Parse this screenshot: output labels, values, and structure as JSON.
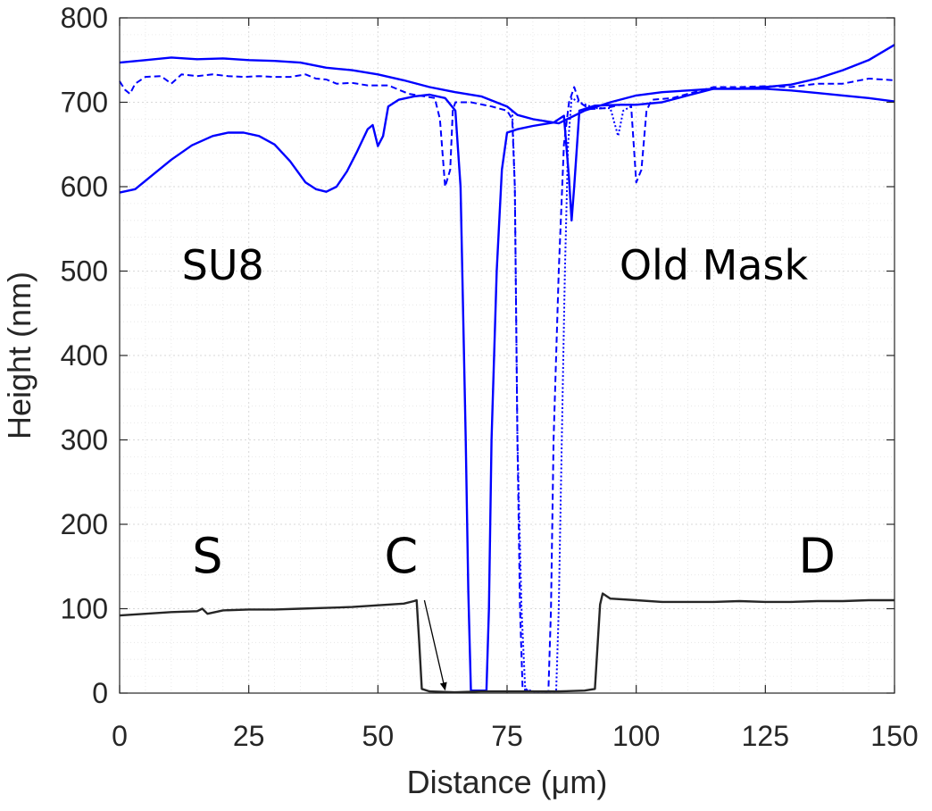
{
  "chart_data": {
    "type": "line",
    "xlabel": "Distance (μm)",
    "ylabel": "Height (nm)",
    "xlim": [
      0,
      150
    ],
    "ylim": [
      0,
      800
    ],
    "x_ticks": [
      0,
      25,
      50,
      75,
      100,
      125,
      150
    ],
    "y_ticks": [
      0,
      100,
      200,
      300,
      400,
      500,
      600,
      700,
      800
    ],
    "x_tick_labels": [
      "0",
      "25",
      "50",
      "75",
      "100",
      "125",
      "150"
    ],
    "y_tick_labels": [
      "0",
      "100",
      "200",
      "300",
      "400",
      "500",
      "600",
      "700",
      "800"
    ],
    "grid": true,
    "minor_grid": true,
    "colors": {
      "blue": "#0000ff",
      "dark": "#262626",
      "axis": "#262626",
      "grid": "#d9d9d9"
    },
    "series": [
      {
        "style": "solid",
        "color": "#0000ff",
        "points": [
          [
            0,
            593
          ],
          [
            3,
            597
          ],
          [
            6,
            612
          ],
          [
            10,
            632
          ],
          [
            14,
            649
          ],
          [
            18,
            660
          ],
          [
            21,
            664
          ],
          [
            24,
            664
          ],
          [
            27,
            660
          ],
          [
            30,
            650
          ],
          [
            33,
            630
          ],
          [
            36,
            605
          ],
          [
            38,
            597
          ],
          [
            40,
            594
          ],
          [
            42,
            600
          ],
          [
            44,
            618
          ],
          [
            46,
            642
          ],
          [
            48,
            668
          ],
          [
            49,
            673
          ],
          [
            50,
            648
          ],
          [
            51,
            660
          ],
          [
            52,
            695
          ],
          [
            54,
            703
          ],
          [
            57,
            707
          ],
          [
            60,
            709
          ],
          [
            63,
            705
          ],
          [
            65,
            690
          ],
          [
            66,
            600
          ],
          [
            67,
            300
          ],
          [
            67.5,
            120
          ],
          [
            68,
            3
          ],
          [
            71,
            3
          ],
          [
            71.5,
            100
          ],
          [
            72,
            300
          ],
          [
            73,
            500
          ],
          [
            74,
            620
          ],
          [
            75,
            664
          ],
          [
            77,
            668
          ],
          [
            80,
            672
          ],
          [
            84,
            676
          ],
          [
            86,
            684
          ],
          [
            87,
            610
          ],
          [
            87.5,
            560
          ],
          [
            88,
            600
          ],
          [
            89,
            690
          ],
          [
            92,
            696
          ],
          [
            97,
            697
          ],
          [
            100,
            697
          ],
          [
            105,
            700
          ],
          [
            110,
            708
          ],
          [
            115,
            716
          ],
          [
            120,
            716
          ],
          [
            125,
            718
          ],
          [
            130,
            721
          ],
          [
            135,
            728
          ],
          [
            140,
            738
          ],
          [
            145,
            750
          ],
          [
            150,
            768
          ]
        ]
      },
      {
        "style": "solid",
        "color": "#0000ff",
        "points": [
          [
            0,
            747
          ],
          [
            5,
            750
          ],
          [
            10,
            753
          ],
          [
            15,
            751
          ],
          [
            20,
            752
          ],
          [
            25,
            750
          ],
          [
            30,
            749
          ],
          [
            35,
            747
          ],
          [
            40,
            741
          ],
          [
            45,
            738
          ],
          [
            50,
            733
          ],
          [
            55,
            726
          ],
          [
            60,
            718
          ],
          [
            65,
            712
          ],
          [
            70,
            707
          ],
          [
            75,
            695
          ],
          [
            77,
            685
          ],
          [
            80,
            680
          ],
          [
            85,
            675
          ],
          [
            90,
            690
          ],
          [
            95,
            700
          ],
          [
            100,
            708
          ],
          [
            105,
            712
          ],
          [
            110,
            714
          ],
          [
            115,
            716
          ],
          [
            120,
            716
          ],
          [
            125,
            716
          ],
          [
            130,
            714
          ],
          [
            135,
            711
          ],
          [
            140,
            708
          ],
          [
            145,
            705
          ],
          [
            150,
            701
          ]
        ]
      },
      {
        "style": "dashed",
        "color": "#0000ff",
        "points": [
          [
            0,
            725
          ],
          [
            1,
            715
          ],
          [
            2,
            710
          ],
          [
            3,
            722
          ],
          [
            5,
            730
          ],
          [
            8,
            731
          ],
          [
            10,
            722
          ],
          [
            12,
            733
          ],
          [
            15,
            731
          ],
          [
            18,
            733
          ],
          [
            21,
            731
          ],
          [
            24,
            730
          ],
          [
            27,
            731
          ],
          [
            30,
            730
          ],
          [
            33,
            730
          ],
          [
            36,
            733
          ],
          [
            38,
            728
          ],
          [
            40,
            727
          ],
          [
            42,
            722
          ],
          [
            45,
            723
          ],
          [
            48,
            720
          ],
          [
            52,
            720
          ],
          [
            56,
            710
          ],
          [
            60,
            706
          ],
          [
            61,
            705
          ],
          [
            62,
            680
          ],
          [
            63,
            600
          ],
          [
            64,
            620
          ],
          [
            64.5,
            690
          ],
          [
            65,
            700
          ],
          [
            68,
            700
          ],
          [
            72,
            695
          ],
          [
            75,
            690
          ],
          [
            76,
            680
          ],
          [
            76.5,
            600
          ],
          [
            77,
            300
          ],
          [
            77.5,
            100
          ],
          [
            78,
            5
          ],
          [
            79,
            3
          ],
          [
            79.5,
            2
          ],
          [
            83,
            2
          ],
          [
            83.5,
            100
          ],
          [
            84,
            300
          ],
          [
            85,
            500
          ],
          [
            86,
            650
          ],
          [
            87,
            700
          ],
          [
            88,
            718
          ],
          [
            89,
            700
          ],
          [
            91,
            692
          ],
          [
            94,
            693
          ],
          [
            97,
            697
          ],
          [
            99,
            697
          ],
          [
            100,
            605
          ],
          [
            101,
            620
          ],
          [
            102,
            690
          ],
          [
            103,
            703
          ],
          [
            107,
            705
          ],
          [
            110,
            710
          ],
          [
            115,
            718
          ],
          [
            120,
            718
          ],
          [
            125,
            719
          ],
          [
            130,
            718
          ],
          [
            135,
            722
          ],
          [
            140,
            722
          ],
          [
            145,
            728
          ],
          [
            150,
            726
          ]
        ]
      },
      {
        "style": "dotted",
        "color": "#0000ff",
        "points": [
          [
            76,
            690
          ],
          [
            76.5,
            600
          ],
          [
            77,
            300
          ],
          [
            77.8,
            100
          ],
          [
            78.5,
            5
          ],
          [
            80,
            2
          ],
          [
            84.5,
            2
          ],
          [
            85,
            100
          ],
          [
            85.6,
            300
          ],
          [
            86.2,
            500
          ],
          [
            86.8,
            650
          ],
          [
            87.5,
            705
          ],
          [
            89,
            700
          ],
          [
            92,
            693
          ],
          [
            95,
            693
          ],
          [
            96.5,
            660
          ],
          [
            97.5,
            690
          ],
          [
            99,
            695
          ]
        ]
      },
      {
        "style": "solid",
        "color": "#262626",
        "points": [
          [
            0,
            92
          ],
          [
            5,
            94
          ],
          [
            10,
            96
          ],
          [
            15,
            97
          ],
          [
            16,
            100
          ],
          [
            17,
            94
          ],
          [
            20,
            98
          ],
          [
            25,
            99
          ],
          [
            30,
            99
          ],
          [
            35,
            100
          ],
          [
            40,
            101
          ],
          [
            45,
            102
          ],
          [
            50,
            104
          ],
          [
            55,
            106
          ],
          [
            57,
            109
          ],
          [
            57.5,
            110
          ],
          [
            58,
            60
          ],
          [
            58.5,
            5
          ],
          [
            60,
            2
          ],
          [
            65,
            1
          ],
          [
            70,
            2
          ],
          [
            75,
            2
          ],
          [
            80,
            2
          ],
          [
            85,
            2
          ],
          [
            90,
            3
          ],
          [
            92,
            5
          ],
          [
            93,
            105
          ],
          [
            93.5,
            118
          ],
          [
            95,
            112
          ],
          [
            100,
            110
          ],
          [
            105,
            108
          ],
          [
            110,
            108
          ],
          [
            115,
            108
          ],
          [
            120,
            109
          ],
          [
            125,
            108
          ],
          [
            130,
            108
          ],
          [
            135,
            109
          ],
          [
            140,
            109
          ],
          [
            145,
            110
          ],
          [
            150,
            110
          ]
        ]
      }
    ],
    "annotations": [
      {
        "text": "SU8",
        "x": 20,
        "y": 490,
        "size": 46
      },
      {
        "text": "Old Mask",
        "x": 115,
        "y": 490,
        "size": 46
      },
      {
        "text": "S",
        "x": 17,
        "y": 143,
        "size": 54
      },
      {
        "text": "C",
        "x": 54.5,
        "y": 143,
        "size": 54
      },
      {
        "text": "D",
        "x": 135,
        "y": 143,
        "size": 54
      }
    ],
    "arrow": {
      "from": [
        59,
        110
      ],
      "to": [
        63,
        4
      ]
    }
  }
}
